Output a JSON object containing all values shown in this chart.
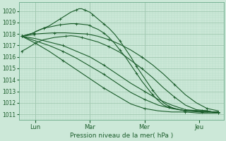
{
  "xlabel": "Pression niveau de la mer( hPa )",
  "bg_color": "#cce8d8",
  "plot_bg_color": "#cce8d8",
  "grid_color_major": "#a0c8b0",
  "grid_color_minor": "#b8dcc8",
  "line_color": "#1a5c2a",
  "ylim": [
    1010.5,
    1020.75
  ],
  "yticks": [
    1011,
    1012,
    1013,
    1014,
    1015,
    1016,
    1017,
    1018,
    1019,
    1020
  ],
  "day_labels": [
    "Lun",
    "Mar",
    "Mer",
    "Jeu"
  ],
  "day_positions": [
    0.25,
    1.25,
    2.25,
    3.25
  ],
  "xlim": [
    -0.05,
    3.7
  ],
  "vline_positions": [
    0.25,
    1.25,
    2.25
  ],
  "lines": [
    {
      "x": [
        0.0,
        0.08,
        0.15,
        0.22,
        0.25,
        0.3,
        0.4,
        0.5,
        0.6,
        0.7,
        0.8,
        0.9,
        1.0,
        1.05,
        1.1,
        1.15,
        1.2,
        1.25,
        1.3,
        1.35,
        1.4,
        1.5,
        1.6,
        1.7,
        1.8,
        1.9,
        2.0,
        2.1,
        2.2,
        2.3,
        2.4,
        2.5,
        2.6,
        2.7,
        2.8,
        2.9,
        3.0,
        3.1,
        3.2,
        3.3,
        3.4,
        3.5,
        3.6
      ],
      "y": [
        1017.8,
        1017.9,
        1018.0,
        1018.1,
        1018.2,
        1018.3,
        1018.5,
        1018.7,
        1019.0,
        1019.3,
        1019.6,
        1019.9,
        1020.1,
        1020.2,
        1020.2,
        1020.1,
        1020.0,
        1019.9,
        1019.7,
        1019.5,
        1019.3,
        1018.9,
        1018.5,
        1018.0,
        1017.4,
        1016.7,
        1016.0,
        1015.2,
        1014.5,
        1013.8,
        1013.1,
        1012.5,
        1012.0,
        1011.7,
        1011.5,
        1011.4,
        1011.3,
        1011.3,
        1011.3,
        1011.3,
        1011.3,
        1011.2,
        1011.2
      ]
    },
    {
      "x": [
        0.0,
        0.08,
        0.15,
        0.22,
        0.25,
        0.3,
        0.4,
        0.5,
        0.6,
        0.7,
        0.8,
        0.9,
        1.0,
        1.1,
        1.2,
        1.25,
        1.3,
        1.4,
        1.5,
        1.6,
        1.7,
        1.8,
        1.9,
        2.0,
        2.1,
        2.2,
        2.3,
        2.4,
        2.5,
        2.6,
        2.7,
        2.8,
        2.9,
        3.0,
        3.1,
        3.2,
        3.3,
        3.4,
        3.5,
        3.6
      ],
      "y": [
        1017.8,
        1017.9,
        1018.0,
        1018.1,
        1018.2,
        1018.3,
        1018.5,
        1018.6,
        1018.7,
        1018.8,
        1018.85,
        1018.9,
        1018.9,
        1018.85,
        1018.8,
        1018.75,
        1018.6,
        1018.4,
        1018.1,
        1017.7,
        1017.2,
        1016.6,
        1016.0,
        1015.3,
        1014.6,
        1013.9,
        1013.3,
        1012.7,
        1012.2,
        1011.8,
        1011.6,
        1011.5,
        1011.4,
        1011.3,
        1011.3,
        1011.3,
        1011.2,
        1011.2,
        1011.2,
        1011.2
      ]
    },
    {
      "x": [
        0.0,
        0.08,
        0.15,
        0.22,
        0.25,
        0.4,
        0.6,
        0.8,
        1.0,
        1.2,
        1.25,
        1.4,
        1.6,
        1.8,
        2.0,
        2.2,
        2.4,
        2.6,
        2.8,
        3.0,
        3.2,
        3.4,
        3.5,
        3.6
      ],
      "y": [
        1017.8,
        1017.85,
        1017.9,
        1017.95,
        1018.0,
        1018.05,
        1018.1,
        1018.1,
        1018.05,
        1018.0,
        1017.95,
        1017.8,
        1017.5,
        1017.1,
        1016.6,
        1016.0,
        1015.3,
        1014.5,
        1013.6,
        1012.7,
        1012.0,
        1011.5,
        1011.4,
        1011.3
      ]
    },
    {
      "x": [
        0.0,
        0.25,
        0.5,
        0.75,
        1.0,
        1.25,
        1.5,
        1.75,
        2.0,
        2.25,
        2.5,
        2.75,
        3.0,
        3.25,
        3.5,
        3.6
      ],
      "y": [
        1017.8,
        1017.6,
        1017.3,
        1017.0,
        1016.5,
        1016.0,
        1015.3,
        1014.5,
        1013.7,
        1013.0,
        1012.3,
        1011.8,
        1011.4,
        1011.3,
        1011.2,
        1011.2
      ]
    },
    {
      "x": [
        0.0,
        0.25,
        0.5,
        0.75,
        1.0,
        1.25,
        1.5,
        1.75,
        2.0,
        2.25,
        2.5,
        2.75,
        3.0,
        3.25,
        3.5,
        3.6
      ],
      "y": [
        1017.8,
        1017.4,
        1017.0,
        1016.5,
        1015.9,
        1015.2,
        1014.5,
        1013.7,
        1012.9,
        1012.3,
        1011.8,
        1011.5,
        1011.3,
        1011.2,
        1011.2,
        1011.1
      ]
    },
    {
      "x": [
        0.0,
        0.25,
        0.5,
        0.75,
        1.0,
        1.25,
        1.5,
        1.75,
        2.0,
        2.25,
        2.5,
        2.75,
        3.0,
        3.25,
        3.5,
        3.6
      ],
      "y": [
        1017.8,
        1017.2,
        1016.5,
        1015.7,
        1014.9,
        1014.1,
        1013.3,
        1012.6,
        1011.9,
        1011.5,
        1011.3,
        1011.2,
        1011.2,
        1011.1,
        1011.1,
        1011.1
      ]
    },
    {
      "x": [
        0.0,
        0.08,
        0.15,
        0.25,
        0.4,
        0.6,
        0.8,
        0.9,
        1.0,
        1.1,
        1.25,
        1.4,
        1.6,
        1.8,
        2.0,
        2.2,
        2.4,
        2.6,
        2.8,
        3.0,
        3.2,
        3.4,
        3.5,
        3.6
      ],
      "y": [
        1016.5,
        1016.7,
        1016.9,
        1017.2,
        1017.5,
        1017.7,
        1017.8,
        1017.85,
        1017.8,
        1017.7,
        1017.5,
        1017.3,
        1016.9,
        1016.4,
        1015.7,
        1015.0,
        1014.2,
        1013.3,
        1012.5,
        1011.8,
        1011.4,
        1011.3,
        1011.2,
        1011.2
      ]
    }
  ]
}
